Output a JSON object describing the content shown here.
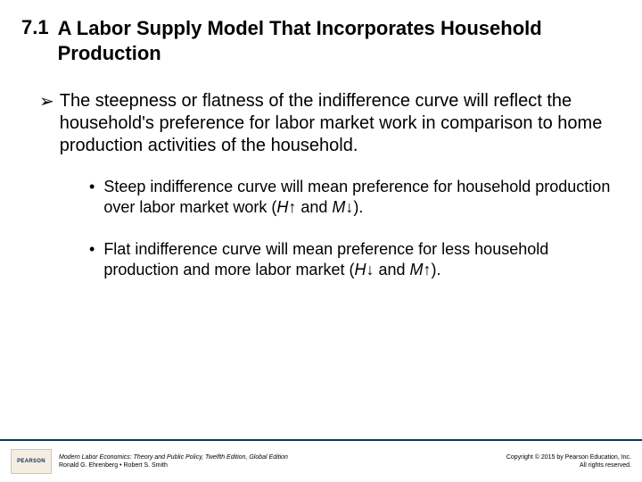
{
  "header": {
    "section_number": "7.1",
    "title": "A  Labor Supply Model That Incorporates Household Production"
  },
  "bullets": {
    "main": "The steepness or flatness of the indifference curve will reflect the household's preference for labor market work in comparison to home production activities of the household.",
    "sub1_a": "Steep indifference curve will mean preference for household production over labor market work (",
    "sub1_h": "H",
    "sub1_up": "↑",
    "sub1_and": " and ",
    "sub1_m": "M",
    "sub1_down": "↓",
    "sub1_end": ").",
    "sub2_a": "Flat indifference curve will mean preference for less household production and more labor market (",
    "sub2_h": "H",
    "sub2_down": "↓",
    "sub2_and": " and ",
    "sub2_m": "M",
    "sub2_up": "↑",
    "sub2_end": ")."
  },
  "footer": {
    "logo_text": "PEARSON",
    "book_title": "Modern Labor Economics: Theory and Public Policy, Twelfth Edition, Global Edition",
    "authors": "Ronald G. Ehrenberg • Robert S. Smith",
    "copyright_line1": "Copyright © 2015 by Pearson Education, Inc.",
    "copyright_line2": "All rights reserved."
  },
  "colors": {
    "rule": "#10355f",
    "logo_bg": "#f4eee2",
    "logo_border": "#cfc6b0",
    "logo_text": "#0a355c",
    "text": "#000000",
    "background": "#ffffff"
  }
}
